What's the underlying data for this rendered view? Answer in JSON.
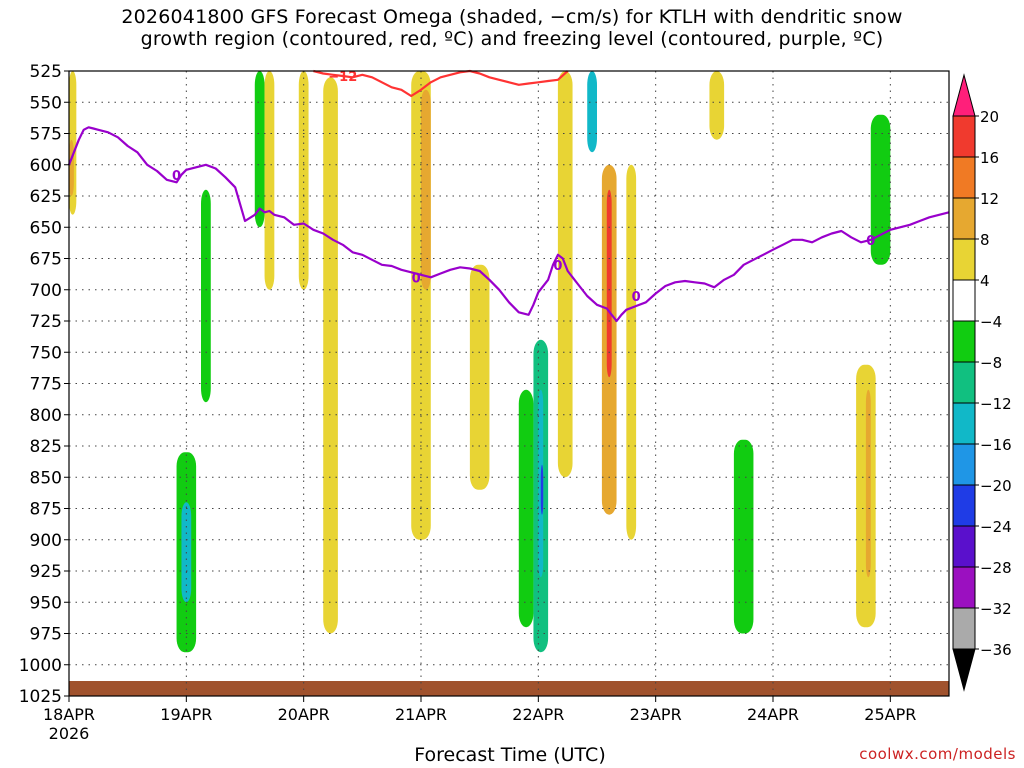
{
  "title_line1": "2026041800 GFS Forecast Omega (shaded, −cm/s) for KTLH with dendritic snow",
  "title_line2": "growth region (contoured, red, ºC) and freezing level (contoured, purple, ºC)",
  "xlabel": "Forecast Time (UTC)",
  "credit": "coolwx.com/models",
  "chart_data": {
    "type": "heatmap",
    "title": "2026041800 GFS Forecast Omega (shaded, −cm/s) for KTLH with dendritic snow growth region (contoured, red, ºC) and freezing level (contoured, purple, ºC)",
    "xlabel": "Forecast Time (UTC)",
    "ylabel": "",
    "y_axis": "pressure (hPa), inverted",
    "ylim": [
      1025,
      525
    ],
    "xlim": [
      0,
      180
    ],
    "x_unit": "hours from 2026-04-18 00 UTC",
    "y_ticks": [
      525,
      550,
      575,
      600,
      625,
      650,
      675,
      700,
      725,
      750,
      775,
      800,
      825,
      850,
      875,
      900,
      925,
      950,
      975,
      1000,
      1025
    ],
    "x_ticks": [
      {
        "hour": 0,
        "label": "18APR",
        "sublabel": "2026"
      },
      {
        "hour": 24,
        "label": "19APR"
      },
      {
        "hour": 48,
        "label": "20APR"
      },
      {
        "hour": 72,
        "label": "21APR"
      },
      {
        "hour": 96,
        "label": "22APR"
      },
      {
        "hour": 120,
        "label": "23APR"
      },
      {
        "hour": 144,
        "label": "24APR"
      },
      {
        "hour": 168,
        "label": "25APR"
      }
    ],
    "grid": true,
    "colorbar": {
      "labels": [
        "20",
        "16",
        "12",
        "8",
        "4",
        "−4",
        "−8",
        "−12",
        "−16",
        "−20",
        "−24",
        "−28",
        "−32",
        "−36"
      ],
      "colors": [
        "#ff1f7a",
        "#f03a2e",
        "#f07a24",
        "#e6a830",
        "#e8d434",
        "#ffffff",
        "#11cc11",
        "#11c080",
        "#11b8c8",
        "#1f96e6",
        "#1f3ce6",
        "#5a10cc",
        "#9b10c0",
        "#aaaaaa",
        "#000000"
      ]
    },
    "shaded_regions": [
      {
        "x": [
          0,
          1.5
        ],
        "p": [
          525,
          640
        ],
        "value": 6
      },
      {
        "x": [
          0,
          1.0
        ],
        "p": [
          580,
          625
        ],
        "value": 10
      },
      {
        "x": [
          22,
          26
        ],
        "p": [
          830,
          990
        ],
        "value": -7
      },
      {
        "x": [
          23,
          25
        ],
        "p": [
          870,
          950
        ],
        "value": -13
      },
      {
        "x": [
          27,
          29
        ],
        "p": [
          620,
          790
        ],
        "value": -6
      },
      {
        "x": [
          38,
          40
        ],
        "p": [
          525,
          650
        ],
        "value": -7
      },
      {
        "x": [
          40,
          42
        ],
        "p": [
          525,
          700
        ],
        "value": 5
      },
      {
        "x": [
          47,
          49
        ],
        "p": [
          525,
          700
        ],
        "value": 5
      },
      {
        "x": [
          52,
          55
        ],
        "p": [
          530,
          975
        ],
        "value": 5
      },
      {
        "x": [
          70,
          74
        ],
        "p": [
          525,
          900
        ],
        "value": 5
      },
      {
        "x": [
          72,
          74
        ],
        "p": [
          540,
          700
        ],
        "value": 10
      },
      {
        "x": [
          82,
          86
        ],
        "p": [
          680,
          860
        ],
        "value": 5
      },
      {
        "x": [
          92,
          95
        ],
        "p": [
          780,
          970
        ],
        "value": -6
      },
      {
        "x": [
          95,
          98
        ],
        "p": [
          740,
          990
        ],
        "value": -9
      },
      {
        "x": [
          96,
          97
        ],
        "p": [
          780,
          930
        ],
        "value": -15
      },
      {
        "x": [
          96.5,
          97
        ],
        "p": [
          840,
          880
        ],
        "value": -21
      },
      {
        "x": [
          100,
          103
        ],
        "p": [
          525,
          850
        ],
        "value": 6
      },
      {
        "x": [
          106,
          108
        ],
        "p": [
          525,
          590
        ],
        "value": -12
      },
      {
        "x": [
          109,
          112
        ],
        "p": [
          600,
          880
        ],
        "value": 10
      },
      {
        "x": [
          110,
          111
        ],
        "p": [
          620,
          770
        ],
        "value": 18
      },
      {
        "x": [
          114,
          116
        ],
        "p": [
          600,
          900
        ],
        "value": 5
      },
      {
        "x": [
          131,
          134
        ],
        "p": [
          525,
          580
        ],
        "value": 5
      },
      {
        "x": [
          136,
          140
        ],
        "p": [
          820,
          975
        ],
        "value": -7
      },
      {
        "x": [
          161,
          165
        ],
        "p": [
          760,
          970
        ],
        "value": 5
      },
      {
        "x": [
          163,
          164
        ],
        "p": [
          780,
          930
        ],
        "value": 9
      },
      {
        "x": [
          164,
          168
        ],
        "p": [
          560,
          680
        ],
        "value": -7
      }
    ],
    "series": [
      {
        "name": "0",
        "color": "#9900cc",
        "x": [
          0,
          1,
          2,
          3,
          4,
          5,
          6,
          8,
          10,
          12,
          14,
          16,
          18,
          20,
          22,
          23,
          24,
          26,
          28,
          30,
          32,
          34,
          36,
          38,
          39,
          40,
          41,
          42,
          44,
          46,
          48,
          50,
          52,
          54,
          56,
          58,
          60,
          62,
          64,
          66,
          68,
          70,
          72,
          74,
          76,
          78,
          80,
          82,
          84,
          86,
          88,
          90,
          92,
          94,
          95,
          96,
          98,
          99,
          100,
          101,
          102,
          103,
          104,
          106,
          108,
          110,
          111,
          112,
          113,
          114,
          116,
          118,
          120,
          122,
          124,
          126,
          128,
          130,
          132,
          134,
          136,
          138,
          140,
          142,
          144,
          146,
          148,
          150,
          152,
          154,
          156,
          158,
          160,
          162,
          164,
          166,
          168,
          170,
          172,
          174,
          176,
          178,
          180
        ],
        "p": [
          600,
          590,
          580,
          572,
          570,
          571,
          572,
          574,
          578,
          585,
          590,
          600,
          605,
          612,
          614,
          608,
          604,
          602,
          600,
          603,
          610,
          618,
          645,
          640,
          635,
          638,
          637,
          640,
          642,
          648,
          647,
          652,
          655,
          660,
          664,
          670,
          672,
          676,
          680,
          681,
          684,
          686,
          688,
          690,
          687,
          684,
          682,
          683,
          685,
          692,
          700,
          710,
          718,
          720,
          712,
          702,
          692,
          680,
          672,
          675,
          685,
          690,
          695,
          705,
          712,
          715,
          720,
          725,
          720,
          716,
          713,
          710,
          703,
          697,
          694,
          693,
          694,
          695,
          698,
          692,
          688,
          680,
          676,
          672,
          668,
          664,
          660,
          660,
          662,
          658,
          655,
          653,
          658,
          662,
          660,
          656,
          652,
          650,
          648,
          645,
          642,
          640,
          638
        ]
      },
      {
        "name": "-12",
        "color": "#ff3333",
        "x": [
          50,
          52,
          54,
          56,
          58,
          60,
          62,
          64,
          66,
          68,
          70,
          72,
          74,
          76,
          78,
          80,
          82,
          84,
          86,
          88,
          90,
          92,
          94,
          96,
          98,
          100,
          102
        ],
        "p": [
          525,
          527,
          528,
          529,
          530,
          528,
          530,
          534,
          538,
          540,
          545,
          540,
          534,
          530,
          528,
          526,
          525,
          527,
          530,
          532,
          534,
          536,
          535,
          534,
          533,
          532,
          525
        ]
      }
    ],
    "contour_labels": [
      {
        "text": "0",
        "x": 22,
        "p": 608,
        "color": "#9900cc"
      },
      {
        "text": "0",
        "x": 71,
        "p": 690,
        "color": "#9900cc"
      },
      {
        "text": "0",
        "x": 100,
        "p": 680,
        "color": "#9900cc"
      },
      {
        "text": "0",
        "x": 116,
        "p": 705,
        "color": "#9900cc"
      },
      {
        "text": "0",
        "x": 164,
        "p": 660,
        "color": "#9900cc"
      },
      {
        "text": "−12",
        "x": 56,
        "p": 529,
        "color": "#ff3333"
      }
    ],
    "terrain": {
      "color": "#a0522d",
      "p_top": 1013
    }
  }
}
